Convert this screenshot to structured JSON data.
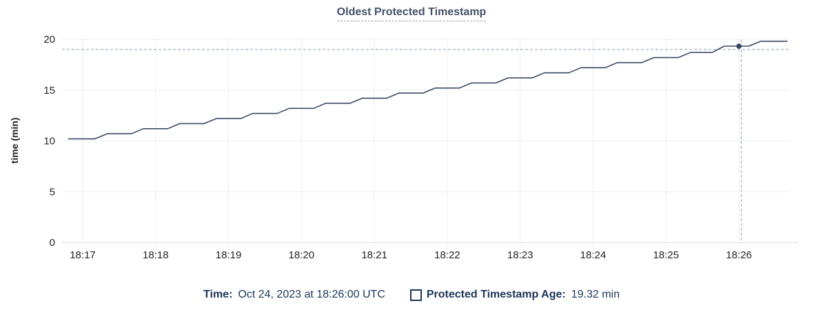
{
  "chart_data": {
    "type": "line",
    "title": "Oldest Protected Timestamp",
    "xlabel": "",
    "ylabel": "time (min)",
    "ylim": [
      0,
      20
    ],
    "y_ticks": [
      0,
      5,
      10,
      15,
      20
    ],
    "x_ticks": [
      "18:17",
      "18:18",
      "18:19",
      "18:20",
      "18:21",
      "18:22",
      "18:23",
      "18:24",
      "18:25",
      "18:26"
    ],
    "grid": true,
    "legend_position": "bottom",
    "series": [
      {
        "name": "Protected Timestamp Age",
        "unit": "min",
        "points": [
          [
            "18:16:48",
            10.2
          ],
          [
            "18:17:10",
            10.2
          ],
          [
            "18:17:20",
            10.7
          ],
          [
            "18:17:40",
            10.7
          ],
          [
            "18:17:50",
            11.2
          ],
          [
            "18:18:10",
            11.2
          ],
          [
            "18:18:20",
            11.7
          ],
          [
            "18:18:40",
            11.7
          ],
          [
            "18:18:50",
            12.2
          ],
          [
            "18:19:10",
            12.2
          ],
          [
            "18:19:20",
            12.7
          ],
          [
            "18:19:40",
            12.7
          ],
          [
            "18:19:50",
            13.2
          ],
          [
            "18:20:10",
            13.2
          ],
          [
            "18:20:20",
            13.7
          ],
          [
            "18:20:40",
            13.7
          ],
          [
            "18:20:50",
            14.2
          ],
          [
            "18:21:10",
            14.2
          ],
          [
            "18:21:20",
            14.7
          ],
          [
            "18:21:40",
            14.7
          ],
          [
            "18:21:50",
            15.2
          ],
          [
            "18:22:10",
            15.2
          ],
          [
            "18:22:20",
            15.7
          ],
          [
            "18:22:40",
            15.7
          ],
          [
            "18:22:50",
            16.2
          ],
          [
            "18:23:10",
            16.2
          ],
          [
            "18:23:20",
            16.7
          ],
          [
            "18:23:40",
            16.7
          ],
          [
            "18:23:50",
            17.2
          ],
          [
            "18:24:10",
            17.2
          ],
          [
            "18:24:20",
            17.7
          ],
          [
            "18:24:40",
            17.7
          ],
          [
            "18:24:50",
            18.2
          ],
          [
            "18:25:10",
            18.2
          ],
          [
            "18:25:20",
            18.7
          ],
          [
            "18:25:38",
            18.7
          ],
          [
            "18:25:48",
            19.32
          ],
          [
            "18:26:08",
            19.32
          ],
          [
            "18:26:18",
            19.8
          ],
          [
            "18:26:40",
            19.8
          ]
        ]
      }
    ],
    "hover_point": {
      "time": "18:26:00",
      "value": 19.32
    },
    "crosshair": {
      "x_time": "18:26:02",
      "y_value": 19.0
    }
  },
  "colors": {
    "line": "#3b4864",
    "dot": "#3b4864",
    "crosshair": "#a2b2c0",
    "grid": "#f0f1f3",
    "baseline": "#dfe2e6",
    "axis_text": "#202328",
    "title": "#445069",
    "title_underline": "#8c98ad",
    "legend_text": "#1b3557"
  },
  "tooltip": {
    "time_label": "Time:",
    "time_value": "Oct 24, 2023 at 18:26:00 UTC",
    "series_label": "Protected Timestamp Age:",
    "series_value": "19.32 min"
  }
}
